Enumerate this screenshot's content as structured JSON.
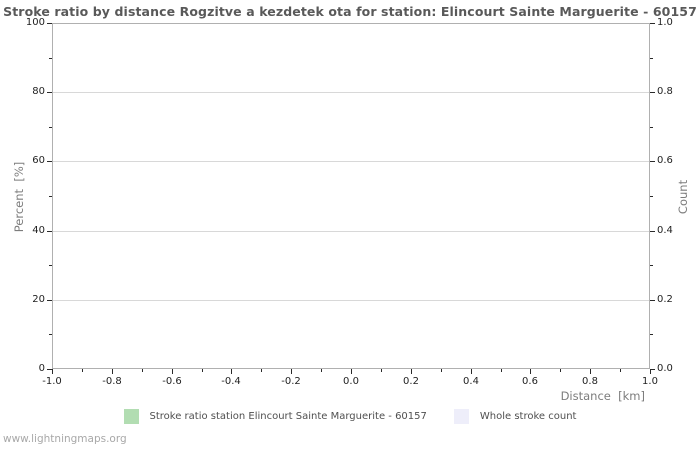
{
  "watermark": "www.lightningmaps.org",
  "chart_data": {
    "type": "bar",
    "title": "Stroke ratio by distance Rogzitve a kezdetek ota for station: Elincourt Sainte Marguerite - 60157",
    "xlabel": "Distance  [km]",
    "ylabel_left": "Percent  [%]",
    "ylabel_right": "Count",
    "xlim": [
      -1.0,
      1.0
    ],
    "ylim_left": [
      0,
      100
    ],
    "ylim_right": [
      0.0,
      1.0
    ],
    "x_ticks": [
      "-1.0",
      "-0.8",
      "-0.6",
      "-0.4",
      "-0.2",
      "0.0",
      "0.2",
      "0.4",
      "0.6",
      "0.8",
      "1.0"
    ],
    "left_ticks": [
      "0",
      "20",
      "40",
      "60",
      "80",
      "100"
    ],
    "right_ticks": [
      "0.0",
      "0.2",
      "0.4",
      "0.6",
      "0.8",
      "1.0"
    ],
    "grid": "horizontal major gridlines only",
    "legend_position": "bottom-center",
    "background_color": "#ffffff",
    "gridline_color": "#d8d8d8",
    "frame_color": "#b0b0b0",
    "series": [
      {
        "name": "Stroke ratio station Elincourt Sainte Marguerite - 60157",
        "color": "#b2ddb2",
        "axis": "left",
        "x": [],
        "values": []
      },
      {
        "name": "Whole stroke count",
        "color": "#eeeefa",
        "axis": "right",
        "x": [],
        "values": []
      }
    ]
  }
}
